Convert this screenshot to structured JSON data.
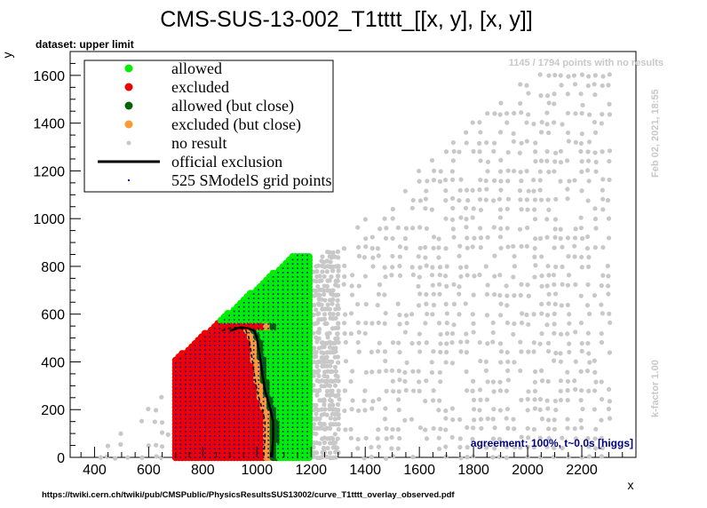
{
  "chart_data": {
    "type": "scatter",
    "title": "CMS-SUS-13-002_T1tttt_[[x, y], [x, y]]",
    "dataset_label": "dataset: upper limit",
    "xlabel": "x",
    "ylabel": "y",
    "xlim": [
      310,
      2400
    ],
    "ylim": [
      0,
      1700
    ],
    "x_ticks": [
      400,
      600,
      800,
      1000,
      1200,
      1400,
      1600,
      1800,
      2000,
      2200
    ],
    "y_ticks": [
      0,
      200,
      400,
      600,
      800,
      1000,
      1200,
      1400,
      1600
    ],
    "x_tick_labels": [
      "400",
      "600",
      "800",
      "1000",
      "1200",
      "1400",
      "1600",
      "1800",
      "2000",
      "2200"
    ],
    "y_tick_labels": [
      "0",
      "200",
      "400",
      "600",
      "800",
      "1000",
      "1200",
      "1400",
      "1600"
    ],
    "grid": false,
    "legend_position": "top-left",
    "legend": [
      {
        "label": "allowed",
        "marker": "dot",
        "color": "#00ee00"
      },
      {
        "label": "excluded",
        "marker": "dot",
        "color": "#ee0000"
      },
      {
        "label": "allowed (but close)",
        "marker": "dot",
        "color": "#006400"
      },
      {
        "label": "excluded (but close)",
        "marker": "dot",
        "color": "#ff9933"
      },
      {
        "label": "no result",
        "marker": "small-dot",
        "color": "#c8c8c8"
      },
      {
        "label": "official exclusion",
        "marker": "line",
        "color": "#000000"
      },
      {
        "label": "525 SModelS grid points",
        "marker": "tiny-dot",
        "color": "#0000cc"
      }
    ],
    "annotations": {
      "points_info": "1145 / 1794 points with no results",
      "timestamp": "Feb 02, 2021, 18:55",
      "kfactor": "k-factor 1.00",
      "agreement": "agreement: 100%, t~0.0s [higgs]",
      "source_url": "https://twiki.cern.ch/twiki/pub/CMSPublic/PhysicsResultsSUS13002/curve_T1tttt_overlay_observed.pdf"
    },
    "colors": {
      "allowed": "#00ee00",
      "excluded": "#ee0000",
      "allowed_close": "#006400",
      "excluded_close": "#ff9933",
      "no_result": "#c8c8c8",
      "grid_points": "#0000cc",
      "agreement_text": "#000080",
      "annotation_gray": "#c8c8c8"
    },
    "regions": {
      "no_result_band": {
        "x_from": 380,
        "x_to": 2300,
        "diagonal": "y <= x - 400",
        "note": "gray scatter upper triangle"
      },
      "excluded_region": {
        "x_from": 700,
        "x_to": 1050,
        "y_from": 0,
        "y_to": 560
      },
      "allowed_region": {
        "x_from": 950,
        "x_to": 1200,
        "y_from": 0,
        "y_to": 840
      }
    },
    "official_exclusion": {
      "x": [
        900,
        940,
        970,
        990,
        1000,
        1010,
        1020,
        1030,
        1040,
        1050,
        1060,
        1060,
        1055
      ],
      "y": [
        530,
        545,
        540,
        530,
        500,
        430,
        350,
        280,
        240,
        200,
        150,
        80,
        0
      ]
    }
  }
}
